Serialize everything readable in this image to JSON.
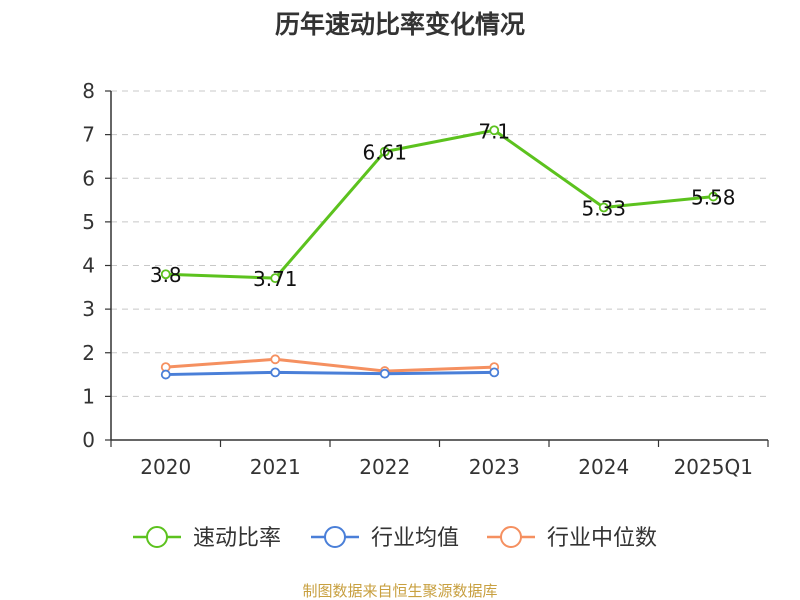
{
  "title": "历年速动比率变化情况",
  "source": "制图数据来自恒生聚源数据库",
  "chart_data": {
    "type": "line",
    "title": "历年速动比率变化情况",
    "categories": [
      "2020",
      "2021",
      "2022",
      "2023",
      "2024",
      "2025Q1"
    ],
    "ylim": [
      0,
      8
    ],
    "yticks": [
      0,
      1,
      2,
      3,
      4,
      5,
      6,
      7,
      8
    ],
    "grid": true,
    "legend_position": "bottom",
    "series": [
      {
        "name": "速动比率",
        "color": "#5cc21e",
        "values": [
          3.8,
          3.71,
          6.61,
          7.1,
          5.33,
          5.58
        ],
        "labels": [
          "3.8",
          "3.71",
          "6.61",
          "7.1",
          "5.33",
          "5.58"
        ]
      },
      {
        "name": "行业均值",
        "color": "#4a7fd8",
        "values": [
          1.5,
          1.55,
          1.52,
          1.55,
          null,
          null
        ]
      },
      {
        "name": "行业中位数",
        "color": "#f59060",
        "values": [
          1.67,
          1.85,
          1.58,
          1.67,
          null,
          null
        ]
      }
    ]
  }
}
